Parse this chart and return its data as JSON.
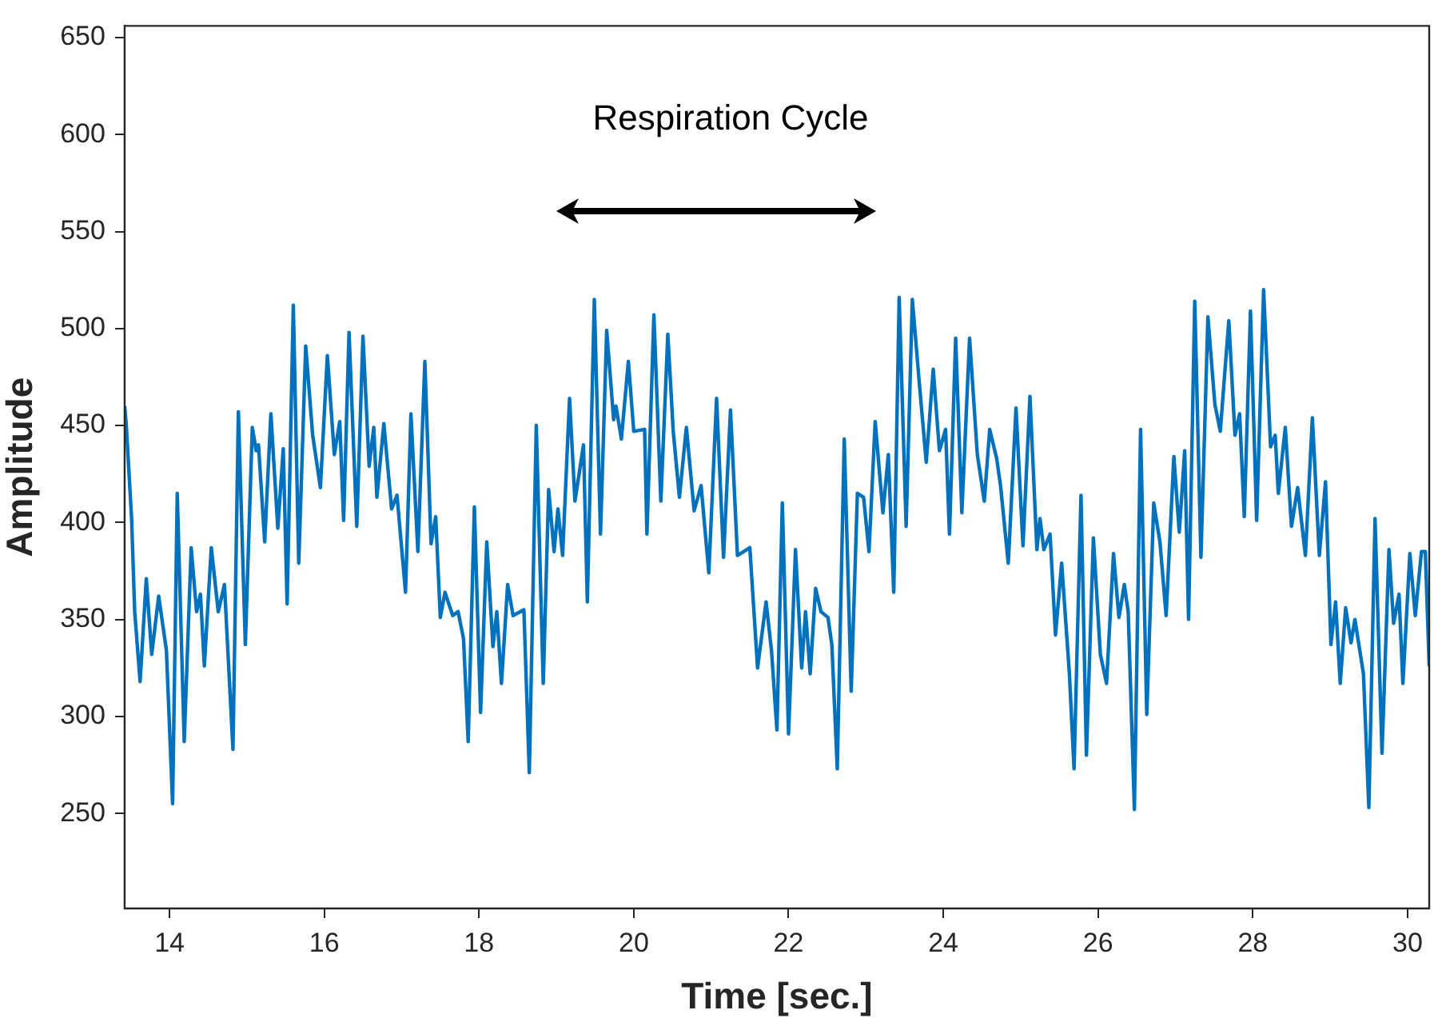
{
  "chart_data": {
    "type": "line",
    "xlabel": "Time [sec.]",
    "ylabel": "Amplitude",
    "annotations": [
      "Respiration Cycle"
    ],
    "xlim": [
      13.42,
      30.28
    ],
    "ylim": [
      201,
      656
    ],
    "xticks": [
      14,
      16,
      18,
      20,
      22,
      24,
      26,
      28,
      30
    ],
    "yticks": [
      250,
      300,
      350,
      400,
      450,
      500,
      550,
      600,
      650
    ],
    "grid": false,
    "legend": false,
    "marker": "none",
    "line_style": "solid",
    "series": [
      {
        "color": "#0072bd",
        "x": [
          13.42,
          13.44,
          13.51,
          13.55,
          13.62,
          13.7,
          13.77,
          13.86,
          13.96,
          14.04,
          14.1,
          14.19,
          14.28,
          14.35,
          14.4,
          14.45,
          14.54,
          14.63,
          14.71,
          14.82,
          14.89,
          14.98,
          15.07,
          15.12,
          15.15,
          15.23,
          15.31,
          15.4,
          15.47,
          15.52,
          15.6,
          15.67,
          15.76,
          15.85,
          15.95,
          16.04,
          16.13,
          16.2,
          16.25,
          16.32,
          16.42,
          16.5,
          16.58,
          16.64,
          16.68,
          16.77,
          16.87,
          16.94,
          17.05,
          17.12,
          17.21,
          17.3,
          17.38,
          17.44,
          17.5,
          17.56,
          17.66,
          17.73,
          17.8,
          17.86,
          17.94,
          18.02,
          18.1,
          18.18,
          18.23,
          18.29,
          18.37,
          18.44,
          18.58,
          18.65,
          18.74,
          18.83,
          18.9,
          18.97,
          19.02,
          19.08,
          19.17,
          19.24,
          19.35,
          19.4,
          19.49,
          19.57,
          19.65,
          19.74,
          19.77,
          19.84,
          19.93,
          20.0,
          20.14,
          20.17,
          20.26,
          20.35,
          20.44,
          20.51,
          20.59,
          20.68,
          20.78,
          20.87,
          20.97,
          21.07,
          21.16,
          21.25,
          21.34,
          21.5,
          21.6,
          21.71,
          21.78,
          21.85,
          21.92,
          22.0,
          22.09,
          22.17,
          22.22,
          22.28,
          22.35,
          22.42,
          22.51,
          22.56,
          22.63,
          22.72,
          22.81,
          22.89,
          22.97,
          23.04,
          23.12,
          23.22,
          23.29,
          23.36,
          23.43,
          23.52,
          23.6,
          23.69,
          23.78,
          23.87,
          23.95,
          24.03,
          24.08,
          24.16,
          24.24,
          24.34,
          24.44,
          24.53,
          24.6,
          24.69,
          24.74,
          24.84,
          24.94,
          25.03,
          25.12,
          25.21,
          25.25,
          25.3,
          25.38,
          25.45,
          25.53,
          25.63,
          25.69,
          25.78,
          25.85,
          25.94,
          26.03,
          26.11,
          26.2,
          26.27,
          26.34,
          26.39,
          26.47,
          26.55,
          26.63,
          26.72,
          26.8,
          26.88,
          26.98,
          27.05,
          27.12,
          27.17,
          27.25,
          27.33,
          27.42,
          27.51,
          27.58,
          27.69,
          27.77,
          27.83,
          27.89,
          27.97,
          28.05,
          28.14,
          28.23,
          28.29,
          28.33,
          28.42,
          28.5,
          28.58,
          28.68,
          28.77,
          28.86,
          28.94,
          29.01,
          29.07,
          29.13,
          29.2,
          29.27,
          29.32,
          29.43,
          29.5,
          29.58,
          29.67,
          29.76,
          29.82,
          29.89,
          29.94,
          30.03,
          30.1,
          30.18,
          30.23,
          30.28
        ],
        "values": [
          460,
          451,
          402,
          354,
          318,
          371,
          332,
          362,
          334,
          255,
          415,
          287,
          387,
          354,
          363,
          326,
          387,
          354,
          368,
          283,
          457,
          337,
          449,
          437,
          440,
          390,
          456,
          397,
          438,
          358,
          512,
          379,
          491,
          445,
          418,
          486,
          435,
          452,
          401,
          498,
          398,
          496,
          429,
          449,
          413,
          451,
          407,
          414,
          364,
          456,
          385,
          483,
          389,
          403,
          351,
          364,
          352,
          354,
          340,
          287,
          408,
          302,
          390,
          336,
          354,
          317,
          368,
          352,
          355,
          271,
          450,
          317,
          417,
          385,
          407,
          383,
          464,
          411,
          440,
          359,
          515,
          394,
          499,
          453,
          460,
          443,
          483,
          447,
          448,
          394,
          507,
          411,
          497,
          447,
          413,
          449,
          406,
          419,
          374,
          464,
          382,
          458,
          383,
          387,
          325,
          359,
          334,
          293,
          410,
          291,
          386,
          325,
          354,
          322,
          366,
          354,
          351,
          337,
          273,
          443,
          313,
          415,
          413,
          385,
          452,
          405,
          435,
          364,
          516,
          398,
          515,
          472,
          431,
          479,
          437,
          448,
          394,
          495,
          405,
          495,
          435,
          411,
          448,
          433,
          419,
          379,
          459,
          388,
          465,
          386,
          402,
          386,
          394,
          342,
          379,
          322,
          273,
          414,
          280,
          392,
          332,
          317,
          384,
          351,
          368,
          354,
          252,
          448,
          301,
          410,
          390,
          352,
          434,
          395,
          437,
          350,
          514,
          382,
          506,
          461,
          447,
          504,
          445,
          456,
          403,
          509,
          401,
          520,
          439,
          445,
          415,
          449,
          398,
          418,
          383,
          454,
          383,
          421,
          337,
          359,
          317,
          356,
          338,
          350,
          322,
          253,
          402,
          281,
          386,
          348,
          363,
          317,
          384,
          352,
          385,
          385,
          326
        ]
      }
    ]
  }
}
